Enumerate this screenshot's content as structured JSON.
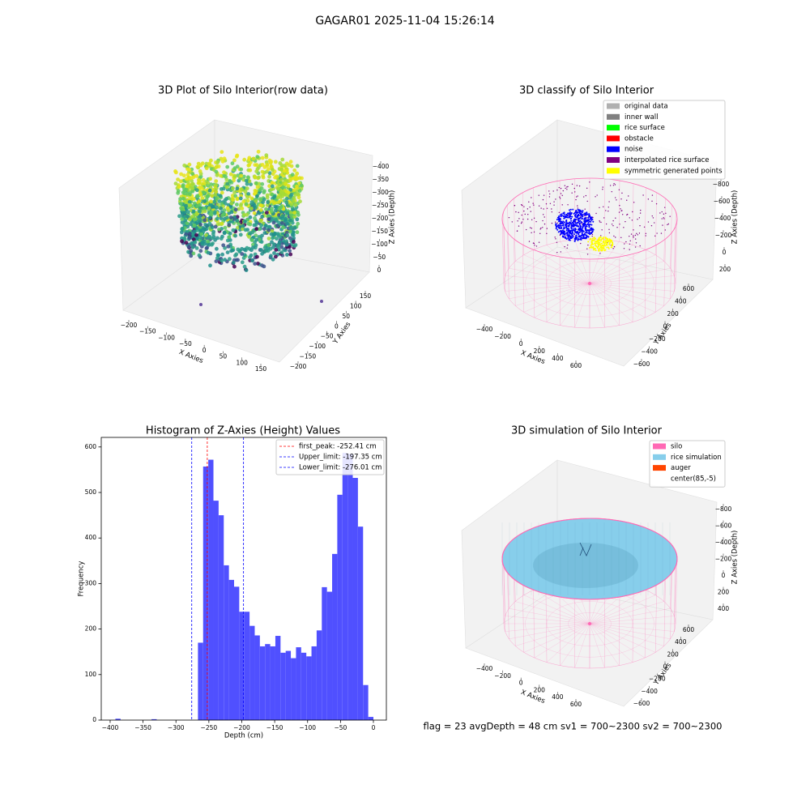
{
  "suptitle": "GAGAR01 2025-11-04 15:26:14",
  "footer": "flag = 23  avgDepth = 48 cm    sv1 = 700~2300  sv2 = 700~2300",
  "chart_data": [
    {
      "type": "scatter3d",
      "title": "3D Plot of Silo Interior(row data)",
      "xlabel": "X Axies",
      "ylabel": "Y Axies",
      "zlabel": "Z Axies (Depth)",
      "xlim": [
        -200,
        150
      ],
      "xticks": [
        {
          "value": -200,
          "label": "−200"
        },
        {
          "value": -150,
          "label": "−150"
        },
        {
          "value": -100,
          "label": "−100"
        },
        {
          "value": -50,
          "label": "−50"
        },
        0,
        50,
        100,
        150
      ],
      "ylim": [
        -200,
        150
      ],
      "yticks": [
        {
          "value": -200,
          "label": "−200"
        },
        {
          "value": -150,
          "label": "−150"
        },
        {
          "value": -100,
          "label": "−100"
        },
        {
          "value": -50,
          "label": "−50"
        },
        0,
        50,
        100,
        150
      ],
      "zlim": [
        -400,
        0
      ],
      "zticks": [
        0,
        {
          "value": -50,
          "label": "−50"
        },
        {
          "value": -100,
          "label": "−100"
        },
        {
          "value": -150,
          "label": "−150"
        },
        {
          "value": -200,
          "label": "−200"
        },
        {
          "value": -250,
          "label": "−250"
        },
        {
          "value": -300,
          "label": "−300"
        },
        {
          "value": -350,
          "label": "−350"
        },
        {
          "value": -400,
          "label": "−400"
        }
      ]
    },
    {
      "type": "cylinder3d",
      "title": "3D classify of Silo Interior",
      "xlabel": "X Axies",
      "ylabel": "Y Axies",
      "zlabel": "Z Axies (Depth)",
      "xlim": [
        -400,
        600
      ],
      "xticks": [
        {
          "value": -400,
          "label": "−400"
        },
        {
          "value": -200,
          "label": "−200"
        },
        0,
        200,
        400,
        600
      ],
      "ylim": [
        -600,
        600
      ],
      "yticks": [
        {
          "value": -600,
          "label": "−600"
        },
        {
          "value": -400,
          "label": "−400"
        },
        {
          "value": -200,
          "label": "−200"
        },
        0,
        200,
        400,
        600
      ],
      "zlim": [
        -800,
        200
      ],
      "zticks": [
        200,
        0,
        {
          "value": -200,
          "label": "−200"
        },
        {
          "value": -400,
          "label": "−400"
        },
        {
          "value": -600,
          "label": "−600"
        },
        {
          "value": -800,
          "label": "−800"
        }
      ],
      "filled": false,
      "series": [
        {
          "name": "original data",
          "color": "#b0b0b0"
        },
        {
          "name": "inner wall",
          "color": "#808080"
        },
        {
          "name": "rice surface",
          "color": "#00ff00"
        },
        {
          "name": "obstacle",
          "color": "#ff0000"
        },
        {
          "name": "noise",
          "color": "#0000ff"
        },
        {
          "name": "interpolated rice surface",
          "color": "#800080"
        },
        {
          "name": "symmetric generated points",
          "color": "#ffff00"
        }
      ]
    },
    {
      "type": "histogram",
      "title": "Histogram of Z-Axies (Height) Values",
      "xlabel": "Depth (cm)",
      "ylabel": "Frequency",
      "color": "#5050ff",
      "bins": [
        -392,
        -384.16,
        -376.32,
        -368.48,
        -360.64,
        -352.8,
        -344.96,
        -337.12,
        -329.28,
        -321.44,
        -313.6,
        -305.76,
        -297.92,
        -290.08,
        -282.24,
        -274.4,
        -266.56,
        -258.72,
        -250.88,
        -243.04,
        -235.2,
        -227.36,
        -219.52,
        -211.68,
        -203.84,
        -196,
        -188.16,
        -180.32,
        -172.48,
        -164.64,
        -156.8,
        -148.96,
        -141.12,
        -133.28,
        -125.44,
        -117.6,
        -109.76,
        -101.92,
        -94.08,
        -86.24,
        -78.4,
        -70.56,
        -62.72,
        -54.88,
        -47.04,
        -39.2,
        -31.36,
        -23.52,
        -15.68,
        -7.84,
        0
      ],
      "counts": [
        3,
        0,
        0,
        0,
        0,
        0,
        0,
        2,
        0,
        0,
        0,
        0,
        0,
        0,
        0,
        0,
        170,
        557,
        572,
        482,
        450,
        340,
        308,
        293,
        238,
        238,
        207,
        186,
        162,
        167,
        162,
        185,
        148,
        152,
        136,
        160,
        148,
        140,
        162,
        197,
        292,
        282,
        365,
        495,
        587,
        585,
        532,
        425,
        77,
        7
      ],
      "vlines": [
        {
          "name": "first_peak: -252.41 cm",
          "value": -252.41,
          "color": "#ff0000"
        },
        {
          "name": "Upper_limit: -197.35 cm",
          "value": -197.35,
          "color": "#0000ff"
        },
        {
          "name": "Lower_limit: -276.01 cm",
          "value": -276.01,
          "color": "#0000ff"
        }
      ],
      "xlim": [
        -413.5,
        19.7
      ],
      "xticks": [
        {
          "value": -400,
          "label": "−400"
        },
        {
          "value": -350,
          "label": "−350"
        },
        {
          "value": -300,
          "label": "−300"
        },
        {
          "value": -250,
          "label": "−250"
        },
        {
          "value": -200,
          "label": "−200"
        },
        {
          "value": -150,
          "label": "−150"
        },
        {
          "value": -100,
          "label": "−100"
        },
        {
          "value": -50,
          "label": "−50"
        },
        0
      ],
      "ylim": [
        0,
        621
      ],
      "yticks": [
        0,
        100,
        200,
        300,
        400,
        500,
        600
      ]
    },
    {
      "type": "cylinder3d",
      "title": "3D simulation of Silo Interior",
      "xlabel": "X Axies",
      "ylabel": "Y Axies",
      "zlabel": "Z Axies (Depth)",
      "xlim": [
        -400,
        600
      ],
      "xticks": [
        {
          "value": -400,
          "label": "−400"
        },
        {
          "value": -200,
          "label": "−200"
        },
        0,
        200,
        400,
        600
      ],
      "ylim": [
        -600,
        600
      ],
      "yticks": [
        {
          "value": -600,
          "label": "−600"
        },
        {
          "value": -400,
          "label": "−400"
        },
        {
          "value": -200,
          "label": "−200"
        },
        0,
        200,
        400,
        600
      ],
      "zlim": [
        -800,
        400
      ],
      "zticks": [
        400,
        200,
        0,
        {
          "value": -200,
          "label": "−200"
        },
        {
          "value": -400,
          "label": "−400"
        },
        {
          "value": -600,
          "label": "−600"
        },
        {
          "value": -800,
          "label": "−800"
        }
      ],
      "filled": true,
      "series": [
        {
          "name": "silo",
          "color": "#ff69b4"
        },
        {
          "name": "rice simulation",
          "color": "#87ceeb"
        },
        {
          "name": "auger",
          "color": "#ff4500"
        },
        {
          "name": "center(85,-5)",
          "color": "#ffffff"
        }
      ]
    }
  ]
}
